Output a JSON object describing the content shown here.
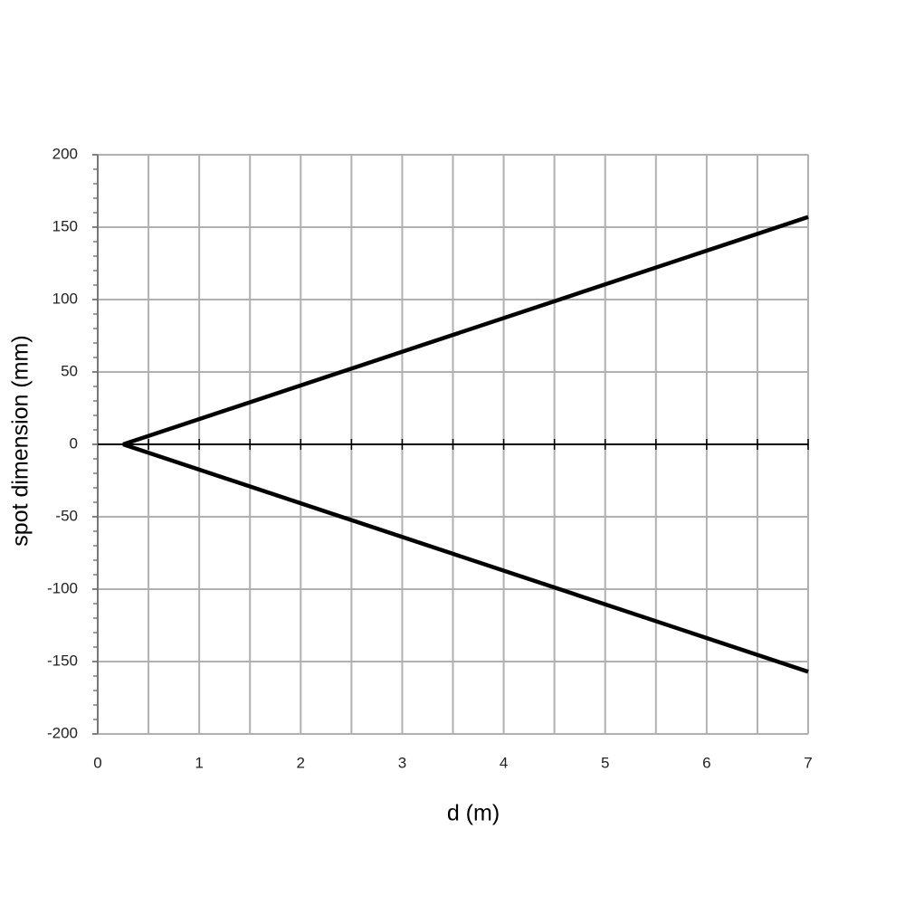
{
  "chart_data": {
    "type": "line",
    "x_label": "d (m)",
    "y_label": "spot dimension (mm)",
    "x": [
      0.25,
      7
    ],
    "series": [
      {
        "color": "#000000",
        "values": [
          0,
          157
        ]
      },
      {
        "color": "#000000",
        "values": [
          0,
          -157
        ]
      }
    ],
    "xlim": [
      0,
      7
    ],
    "xticks": [
      0,
      1,
      2,
      3,
      4,
      5,
      6,
      7
    ],
    "ylim": [
      -200,
      200
    ],
    "yticks": [
      -200,
      -150,
      -100,
      -50,
      0,
      50,
      100,
      150,
      200
    ],
    "grid": true,
    "x_minor_divisions": 2,
    "y_minor_divisions": 5,
    "grid_color": "#b0b0b0"
  }
}
